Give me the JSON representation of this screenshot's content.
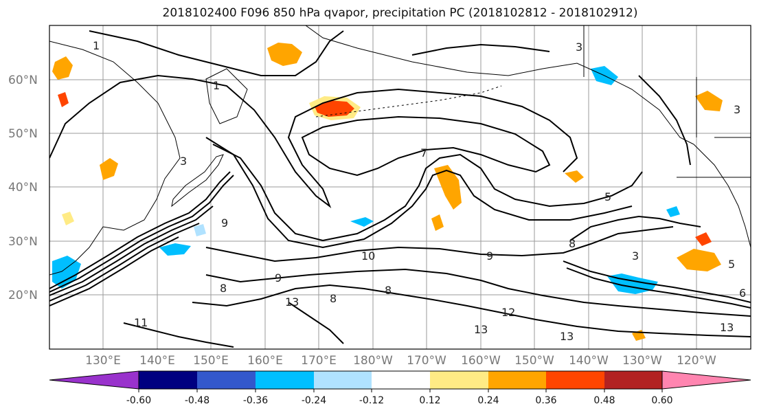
{
  "map": {
    "title": "2018102400 F096 850 hPa qvapor, precipitation PC (2018102812 - 2018102912)",
    "lat_labels": [
      "60°N",
      "50°N",
      "40°N",
      "30°N",
      "20°N"
    ],
    "lon_labels": [
      "130°E",
      "140°E",
      "150°E",
      "160°E",
      "170°E",
      "180°W",
      "170°W",
      "160°W",
      "150°W",
      "140°W",
      "130°W",
      "120°W"
    ],
    "contour_labels": [
      "1",
      "1",
      "3",
      "3",
      "3",
      "3",
      "8",
      "9",
      "9",
      "10",
      "9",
      "11",
      "13",
      "13",
      "13",
      "12",
      "13",
      "8",
      "7",
      "5",
      "5",
      "6",
      "8",
      "8"
    ]
  },
  "colorbar": {
    "ticks": [
      "-0.60",
      "-0.48",
      "-0.36",
      "-0.24",
      "-0.12",
      "0.12",
      "0.24",
      "0.36",
      "0.48",
      "0.60"
    ],
    "colors": [
      "#9932cc",
      "#000080",
      "#3358cc",
      "#00bfff",
      "#b0e2ff",
      "#ffffff",
      "#ffeb85",
      "#ffa500",
      "#ff4500",
      "#b22222",
      "#ff85b0"
    ]
  }
}
